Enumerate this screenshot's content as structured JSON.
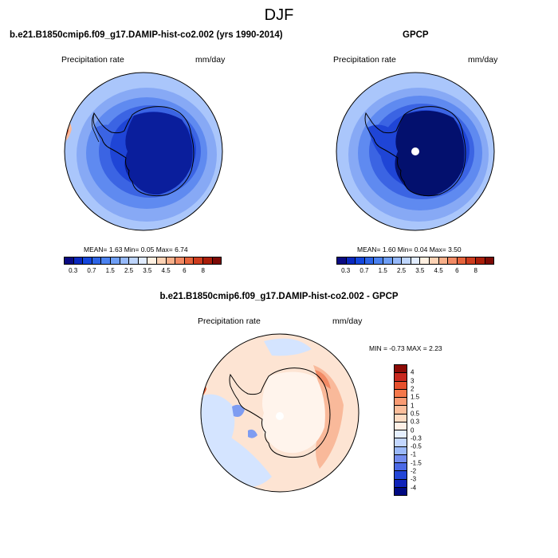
{
  "main_title": "DJF",
  "panel1": {
    "title": "b.e21.B1850cmip6.f09_g17.DAMIP-hist-co2.002 (yrs 1990-2014)",
    "var_label": "Precipitation rate",
    "units": "mm/day",
    "stats": "MEAN=   1.63  Min=   0.05  Max=   6.74"
  },
  "panel2": {
    "title": "GPCP",
    "var_label": "Precipitation rate",
    "units": "mm/day",
    "stats": "MEAN=   1.60  Min=   0.04  Max=   3.50"
  },
  "colorbar_main": {
    "colors": [
      "#0a0a82",
      "#0a28be",
      "#1446dc",
      "#2d64e6",
      "#4b82f0",
      "#6e9ef5",
      "#96b9fa",
      "#bed5fc",
      "#e1ecff",
      "#fff0e1",
      "#fcd2b4",
      "#f8b08a",
      "#f28a64",
      "#e6643c",
      "#cd3c1e",
      "#aa1e0a",
      "#7d0a05"
    ],
    "labels": [
      "0.3",
      "0.7",
      "1.5",
      "2.5",
      "3.5",
      "4.5",
      "6",
      "8"
    ]
  },
  "panel3": {
    "title": "b.e21.B1850cmip6.f09_g17.DAMIP-hist-co2.002 - GPCP",
    "var_label": "Precipitation rate",
    "units": "mm/day",
    "stats": "MIN =  -0.73 MAX =   2.23"
  },
  "colorbar_diff": {
    "colors": [
      "#8c0a05",
      "#c8281e",
      "#e6502d",
      "#f5784b",
      "#fa9b73",
      "#fcbe9b",
      "#ffdcc3",
      "#fff0e6",
      "#e6f0ff",
      "#c3d7ff",
      "#9bb9fa",
      "#738cf0",
      "#4b69e6",
      "#2346d7",
      "#0f23b9",
      "#000a82"
    ],
    "labels": [
      "4",
      "3",
      "2",
      "1.5",
      "1",
      "0.5",
      "0.3",
      "0",
      "-0.3",
      "-0.5",
      "-1",
      "-1.5",
      "-2",
      "-3",
      "-4"
    ]
  },
  "map_colors": {
    "outer": "#aac6fb",
    "ring2": "#87a9f5",
    "ring3": "#5f8af0",
    "ring4": "#3b64e3",
    "ring5": "#1f45d6",
    "continent": "#0a1e9c",
    "continent_gpcp": "#03106e",
    "warm": "#f9b99a",
    "hot": "#e8552c",
    "diff_bg": "#fde4d3",
    "diff_light_blue": "#d4e4ff",
    "diff_blue": "#7e9cf1"
  }
}
